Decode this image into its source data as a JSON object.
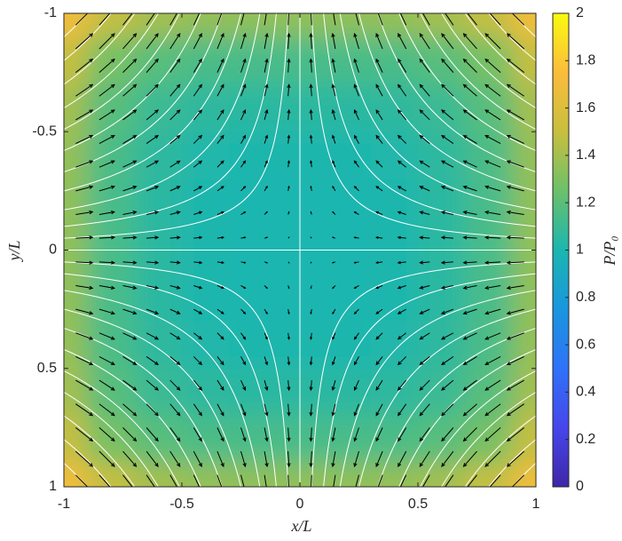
{
  "chart_data": {
    "type": "heatmap",
    "xlabel": "x/L",
    "ylabel": "y/L",
    "colorbar_label": "P/P₀",
    "colormap": "parula",
    "xlim": [
      -1,
      1
    ],
    "ylim": [
      -1,
      1
    ],
    "y_direction": "reverse",
    "xticks": [
      -1,
      -0.5,
      0,
      0.5,
      1
    ],
    "yticks": [
      -1,
      -0.5,
      0,
      0.5,
      1
    ],
    "clim": [
      0,
      2
    ],
    "cticks": [
      0,
      0.2,
      0.4,
      0.6,
      0.8,
      1,
      1.2,
      1.4,
      1.6,
      1.8,
      2
    ],
    "x": [
      -1,
      -0.8,
      -0.6,
      -0.4,
      -0.2,
      0,
      0.2,
      0.4,
      0.6,
      0.8,
      1
    ],
    "y": [
      -1,
      -0.8,
      -0.6,
      -0.4,
      -0.2,
      0,
      0.2,
      0.4,
      0.6,
      0.8,
      1
    ],
    "z": [
      [
        1.7,
        1.49,
        1.4,
        1.36,
        1.35,
        1.35,
        1.35,
        1.36,
        1.4,
        1.49,
        1.7
      ],
      [
        1.49,
        1.28,
        1.19,
        1.15,
        1.14,
        1.14,
        1.14,
        1.15,
        1.19,
        1.28,
        1.49
      ],
      [
        1.4,
        1.19,
        1.1,
        1.06,
        1.05,
        1.05,
        1.05,
        1.06,
        1.1,
        1.19,
        1.4
      ],
      [
        1.36,
        1.15,
        1.06,
        1.02,
        1.01,
        1.01,
        1.01,
        1.02,
        1.06,
        1.15,
        1.36
      ],
      [
        1.35,
        1.14,
        1.05,
        1.01,
        1,
        1,
        1,
        1.01,
        1.05,
        1.14,
        1.35
      ],
      [
        1.35,
        1.14,
        1.05,
        1.01,
        1,
        1,
        1,
        1.01,
        1.05,
        1.14,
        1.35
      ],
      [
        1.35,
        1.14,
        1.05,
        1.01,
        1,
        1,
        1,
        1.01,
        1.05,
        1.14,
        1.35
      ],
      [
        1.36,
        1.15,
        1.06,
        1.02,
        1.01,
        1.01,
        1.01,
        1.02,
        1.06,
        1.15,
        1.36
      ],
      [
        1.4,
        1.19,
        1.1,
        1.06,
        1.05,
        1.05,
        1.05,
        1.06,
        1.1,
        1.19,
        1.4
      ],
      [
        1.49,
        1.28,
        1.19,
        1.15,
        1.14,
        1.14,
        1.14,
        1.15,
        1.19,
        1.28,
        1.49
      ],
      [
        1.7,
        1.49,
        1.4,
        1.36,
        1.35,
        1.35,
        1.35,
        1.36,
        1.4,
        1.49,
        1.7
      ]
    ],
    "quiver": {
      "color": "#000000",
      "x": [
        -0.95,
        -0.85,
        -0.75,
        -0.65,
        -0.55,
        -0.45,
        -0.35,
        -0.25,
        -0.15,
        -0.05,
        0.05,
        0.15,
        0.25,
        0.35,
        0.45,
        0.55,
        0.65,
        0.75,
        0.85,
        0.95
      ],
      "y": [
        -0.95,
        -0.85,
        -0.75,
        -0.65,
        -0.55,
        -0.45,
        -0.35,
        -0.25,
        -0.15,
        -0.05,
        0.05,
        0.15,
        0.25,
        0.35,
        0.45,
        0.55,
        0.65,
        0.75,
        0.85,
        0.95
      ],
      "u": [
        0.95,
        0.85,
        0.75,
        0.65,
        0.55,
        0.45,
        0.35,
        0.25,
        0.15,
        0.05,
        -0.05,
        -0.15,
        -0.25,
        -0.35,
        -0.45,
        -0.55,
        -0.65,
        -0.75,
        -0.85,
        -0.95
      ],
      "v": [
        -0.95,
        -0.85,
        -0.75,
        -0.65,
        -0.55,
        -0.45,
        -0.35,
        -0.25,
        -0.15,
        -0.05,
        0.05,
        0.15,
        0.25,
        0.35,
        0.45,
        0.55,
        0.65,
        0.75,
        0.85,
        0.95
      ]
    },
    "streamlines": {
      "color": "#ffffff",
      "levels": [
        0,
        0.05,
        0.1,
        0.17,
        0.25,
        0.33,
        0.42,
        0.51,
        0.6,
        0.7,
        0.8,
        0.9
      ]
    }
  }
}
